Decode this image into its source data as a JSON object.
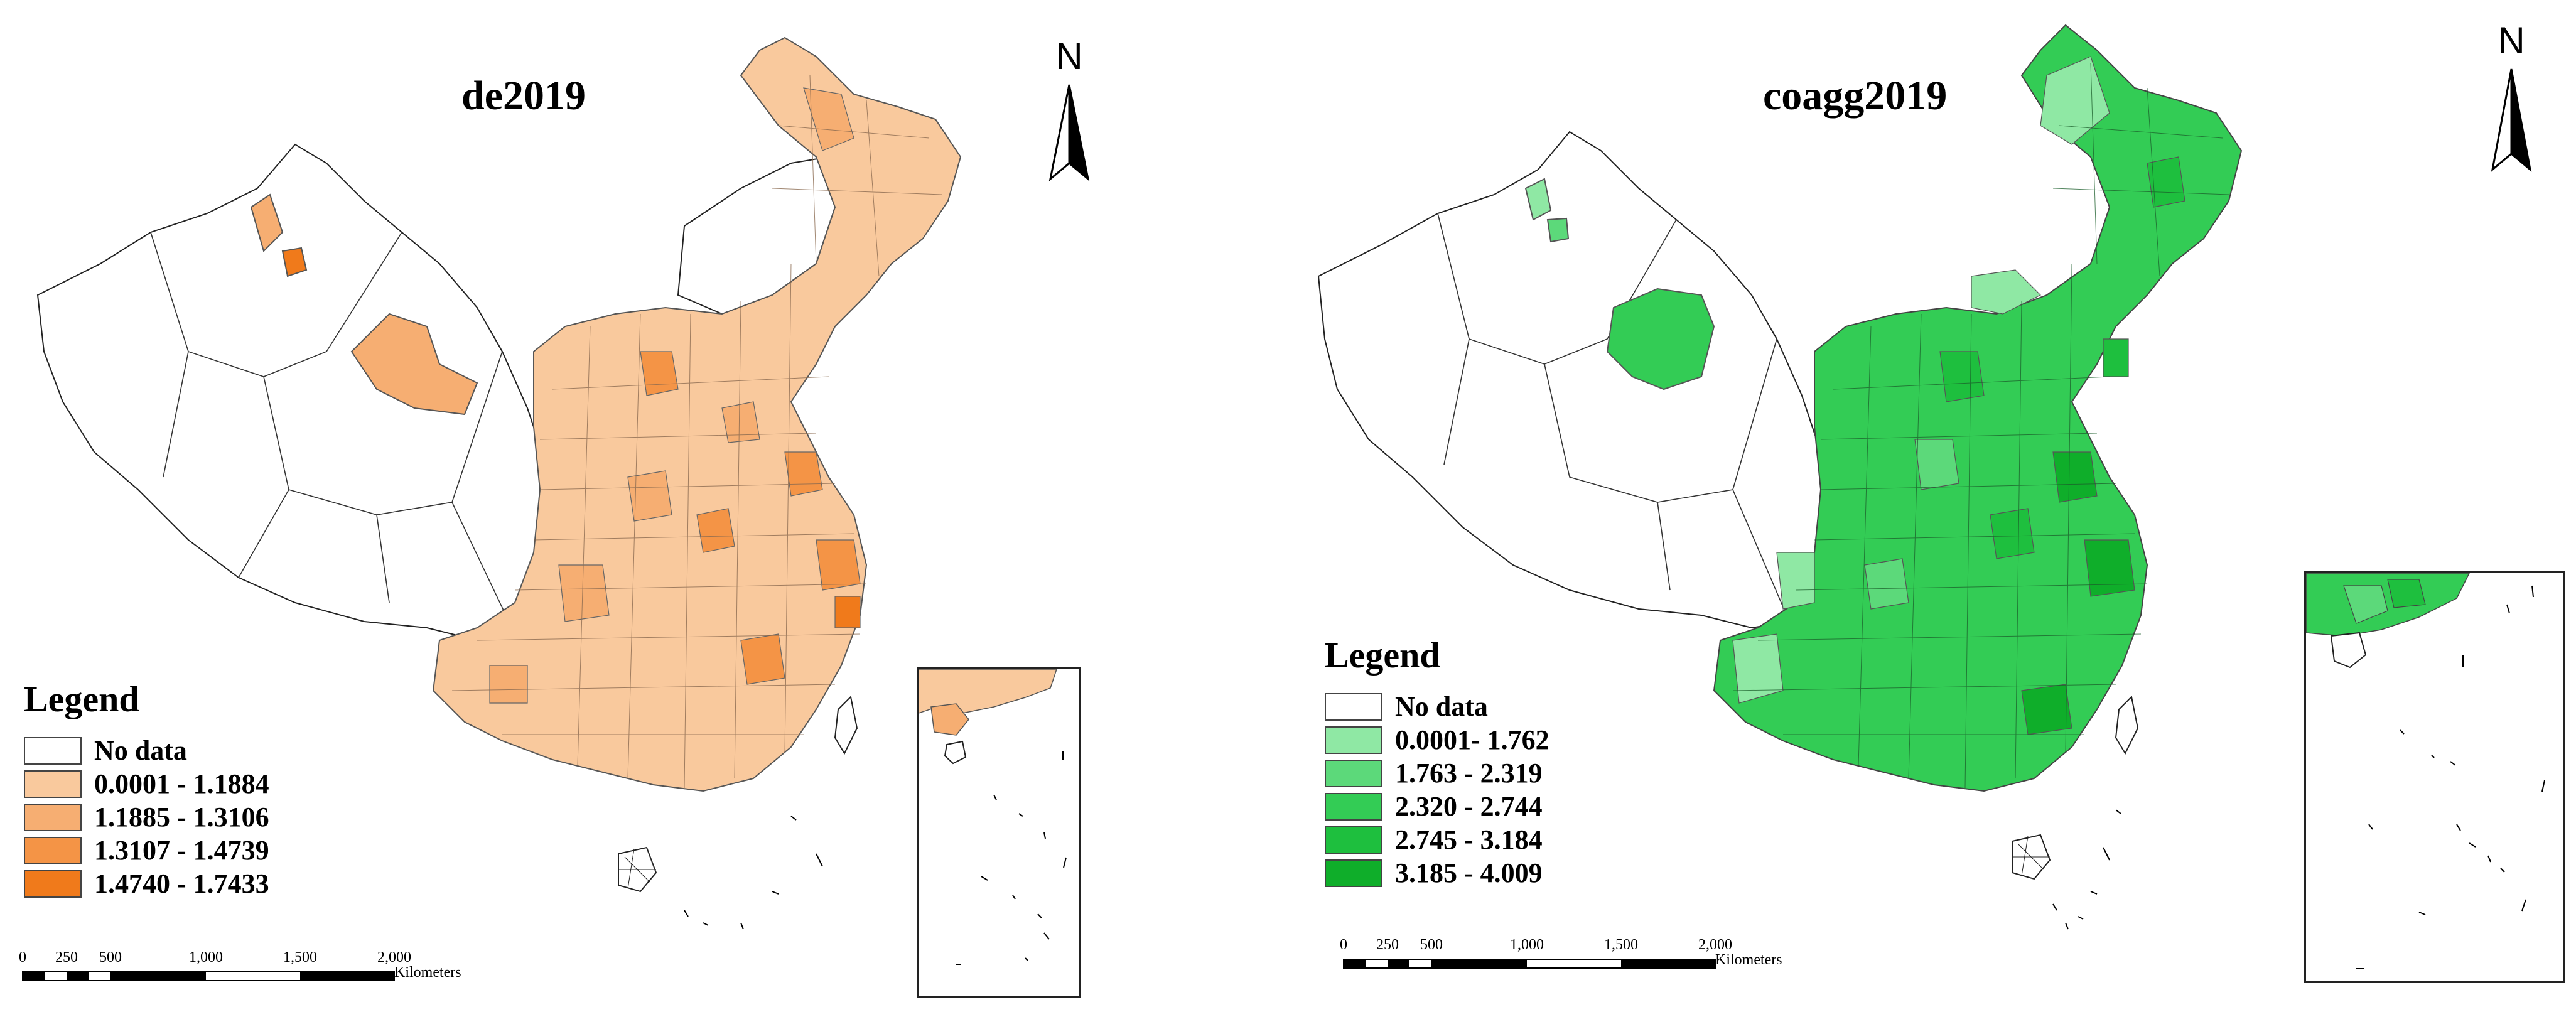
{
  "maps": [
    {
      "title": "de2019",
      "north_label": "N",
      "legend": {
        "title": "Legend",
        "classes": [
          {
            "label": "No  data",
            "color": "#ffffff"
          },
          {
            "label": "0.0001 - 1.1884",
            "color": "#f9c99d"
          },
          {
            "label": "1.1885 - 1.3106",
            "color": "#f6ae72"
          },
          {
            "label": "1.3107 - 1.4739",
            "color": "#f49446"
          },
          {
            "label": "1.4740 - 1.7433",
            "color": "#f07a1b"
          }
        ]
      },
      "scalebar": {
        "ticks": [
          "0",
          "250",
          "500",
          "1,000",
          "1,500",
          "2,000"
        ],
        "unit": "Kilometers"
      }
    },
    {
      "title": "coagg2019",
      "north_label": "N",
      "legend": {
        "title": "Legend",
        "classes": [
          {
            "label": "No  data",
            "color": "#ffffff"
          },
          {
            "label": "0.0001- 1.762",
            "color": "#8fe8a4"
          },
          {
            "label": "1.763 - 2.319",
            "color": "#5cd97a"
          },
          {
            "label": "2.320 - 2.744",
            "color": "#33cc55"
          },
          {
            "label": "2.745 - 3.184",
            "color": "#1ebf3e"
          },
          {
            "label": "3.185 - 4.009",
            "color": "#0fae2a"
          }
        ]
      },
      "scalebar": {
        "ticks": [
          "0",
          "250",
          "500",
          "1,000",
          "1,500",
          "2,000"
        ],
        "unit": "Kilometers"
      }
    }
  ]
}
